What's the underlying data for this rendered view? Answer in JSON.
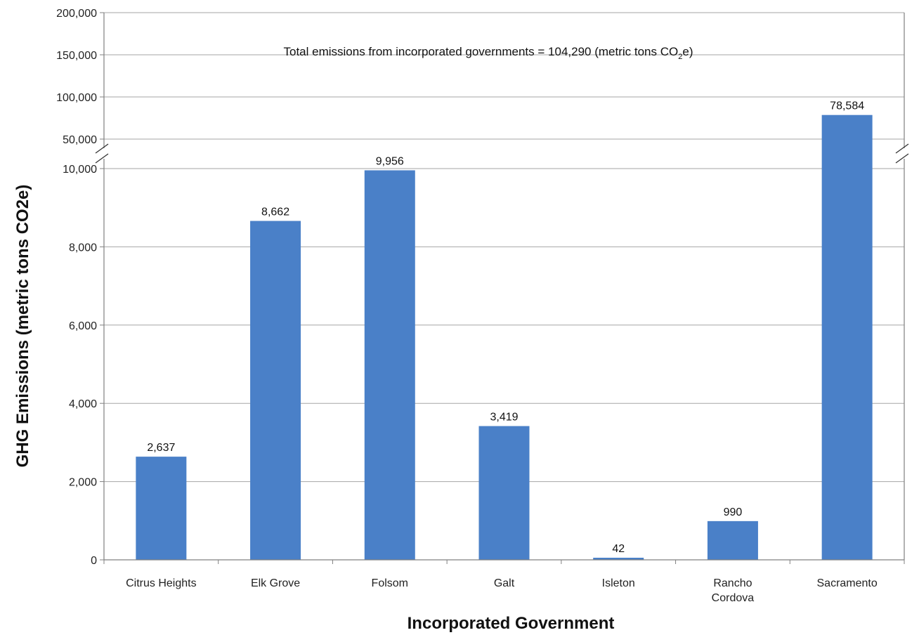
{
  "chart_data": {
    "type": "bar",
    "title": "",
    "xlabel": "Incorporated Government",
    "ylabel": "GHG Emissions (metric tons CO2e)",
    "categories": [
      [
        "Citrus Heights"
      ],
      [
        "Elk Grove"
      ],
      [
        "Folsom"
      ],
      [
        "Galt"
      ],
      [
        "Isleton"
      ],
      [
        "Rancho",
        "Cordova"
      ],
      [
        "Sacramento"
      ]
    ],
    "series": [
      {
        "values": [
          2637,
          8662,
          9956,
          3419,
          42,
          990,
          78584
        ],
        "labels": [
          "2,637",
          "8,662",
          "9,956",
          "3,419",
          "42",
          "990",
          "78,584"
        ]
      }
    ],
    "lower_axis": {
      "ylim": [
        0,
        10000
      ],
      "ticks": [
        0,
        2000,
        4000,
        6000,
        8000,
        10000
      ],
      "tick_labels": [
        "0",
        "2,000",
        "4,000",
        "6,000",
        "8,000",
        "10,000"
      ]
    },
    "upper_axis": {
      "ylim": [
        40000,
        200000
      ],
      "ticks": [
        50000,
        100000,
        150000,
        200000
      ],
      "tick_labels": [
        "50,000",
        "100,000",
        "150,000",
        "200,000"
      ]
    },
    "axis_break": true,
    "grid": true,
    "annotation": {
      "prefix": "Total emissions from incorporated governments = 104,290 (metric tons CO",
      "subscript": "2",
      "suffix": "e)"
    },
    "colors": {
      "bar": "#4a80c8",
      "bar_top": "#5b8fd3",
      "grid": "#a6a6a6",
      "axis": "#808080"
    }
  }
}
